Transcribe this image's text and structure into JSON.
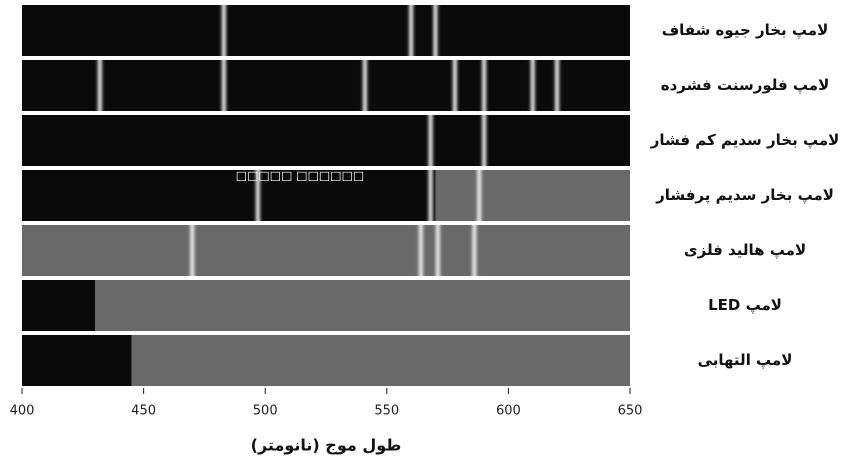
{
  "chart_data": {
    "type": "spectrum",
    "x_label": "طول موج (نانومتر)",
    "annotation": "□□□□□ □□□□□□",
    "xlim": [
      400,
      650
    ],
    "xticks": [
      400,
      450,
      500,
      550,
      600,
      650
    ],
    "background": "#0a0a0a",
    "line_color": "#f2f2f2",
    "band_color": "#8a8a8a",
    "series": [
      {
        "name": "لامپ بخار جیوه شفاف",
        "lines": [
          483,
          560,
          570
        ]
      },
      {
        "name": "لامپ فلورسنت فشرده",
        "lines": [
          432,
          483,
          541,
          578,
          590,
          610,
          620
        ]
      },
      {
        "name": "لامپ بخار سدیم کم فشار",
        "lines": [
          568,
          590
        ]
      },
      {
        "name": "لامپ بخار سدیم پرفشار",
        "lines": [
          497,
          568,
          588
        ],
        "band": [
          570,
          650
        ]
      },
      {
        "name": "لامپ هالید فلزی",
        "lines": [
          470,
          564,
          571,
          586
        ],
        "band": [
          400,
          650
        ]
      },
      {
        "name": "لامپ LED",
        "band": [
          430,
          650
        ]
      },
      {
        "name": "لامپ التهابی",
        "band": [
          445,
          650
        ]
      }
    ]
  }
}
